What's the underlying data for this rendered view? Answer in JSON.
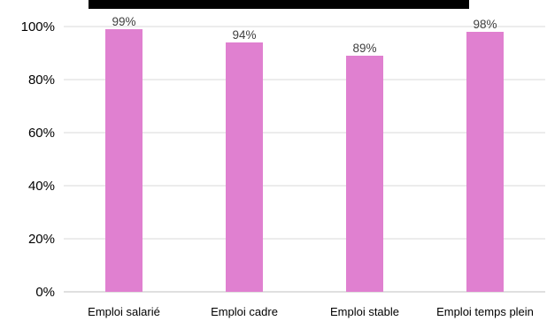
{
  "chart_data": {
    "type": "bar",
    "categories": [
      "Emploi salarié",
      "Emploi cadre",
      "Emploi stable",
      "Emploi temps plein"
    ],
    "values": [
      99,
      94,
      89,
      98
    ],
    "data_labels": [
      "99%",
      "94%",
      "89%",
      "98%"
    ],
    "y_ticks": [
      0,
      20,
      40,
      60,
      80,
      100
    ],
    "y_tick_labels": [
      "0%",
      "20%",
      "40%",
      "60%",
      "80%",
      "100%"
    ],
    "ylim": [
      0,
      100
    ],
    "grid": true,
    "legend": "none",
    "colors": {
      "bar": "#e080d0",
      "title_band": "#000000"
    }
  }
}
